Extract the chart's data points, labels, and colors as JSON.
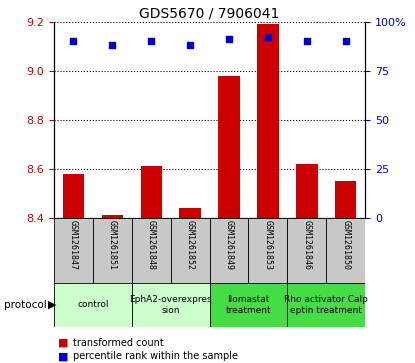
{
  "title": "GDS5670 / 7906041",
  "samples": [
    "GSM1261847",
    "GSM1261851",
    "GSM1261848",
    "GSM1261852",
    "GSM1261849",
    "GSM1261853",
    "GSM1261846",
    "GSM1261850"
  ],
  "bar_values": [
    8.58,
    8.41,
    8.61,
    8.44,
    8.98,
    9.19,
    8.62,
    8.55
  ],
  "percentile_values": [
    90,
    88,
    90,
    88,
    91,
    92,
    90,
    90
  ],
  "ylim": [
    8.4,
    9.2
  ],
  "yticks_left": [
    8.4,
    8.6,
    8.8,
    9.0,
    9.2
  ],
  "yticks_right": [
    0,
    25,
    50,
    75,
    100
  ],
  "bar_color": "#cc0000",
  "dot_color": "#0000cc",
  "groups": [
    {
      "label": "control",
      "start": 0,
      "end": 2,
      "color": "#ccffcc"
    },
    {
      "label": "EphA2-overexpres\nsion",
      "start": 2,
      "end": 4,
      "color": "#ccffcc"
    },
    {
      "label": "Ilomastat\ntreatment",
      "start": 4,
      "end": 6,
      "color": "#44dd44"
    },
    {
      "label": "Rho activator Calp\neptin treatment",
      "start": 6,
      "end": 8,
      "color": "#44dd44"
    }
  ],
  "legend_items": [
    {
      "label": "transformed count",
      "color": "#cc0000"
    },
    {
      "label": "percentile rank within the sample",
      "color": "#0000cc"
    }
  ],
  "protocol_label": "protocol",
  "bar_width": 0.55,
  "sample_box_color": "#c8c8c8",
  "title_fontsize": 10
}
